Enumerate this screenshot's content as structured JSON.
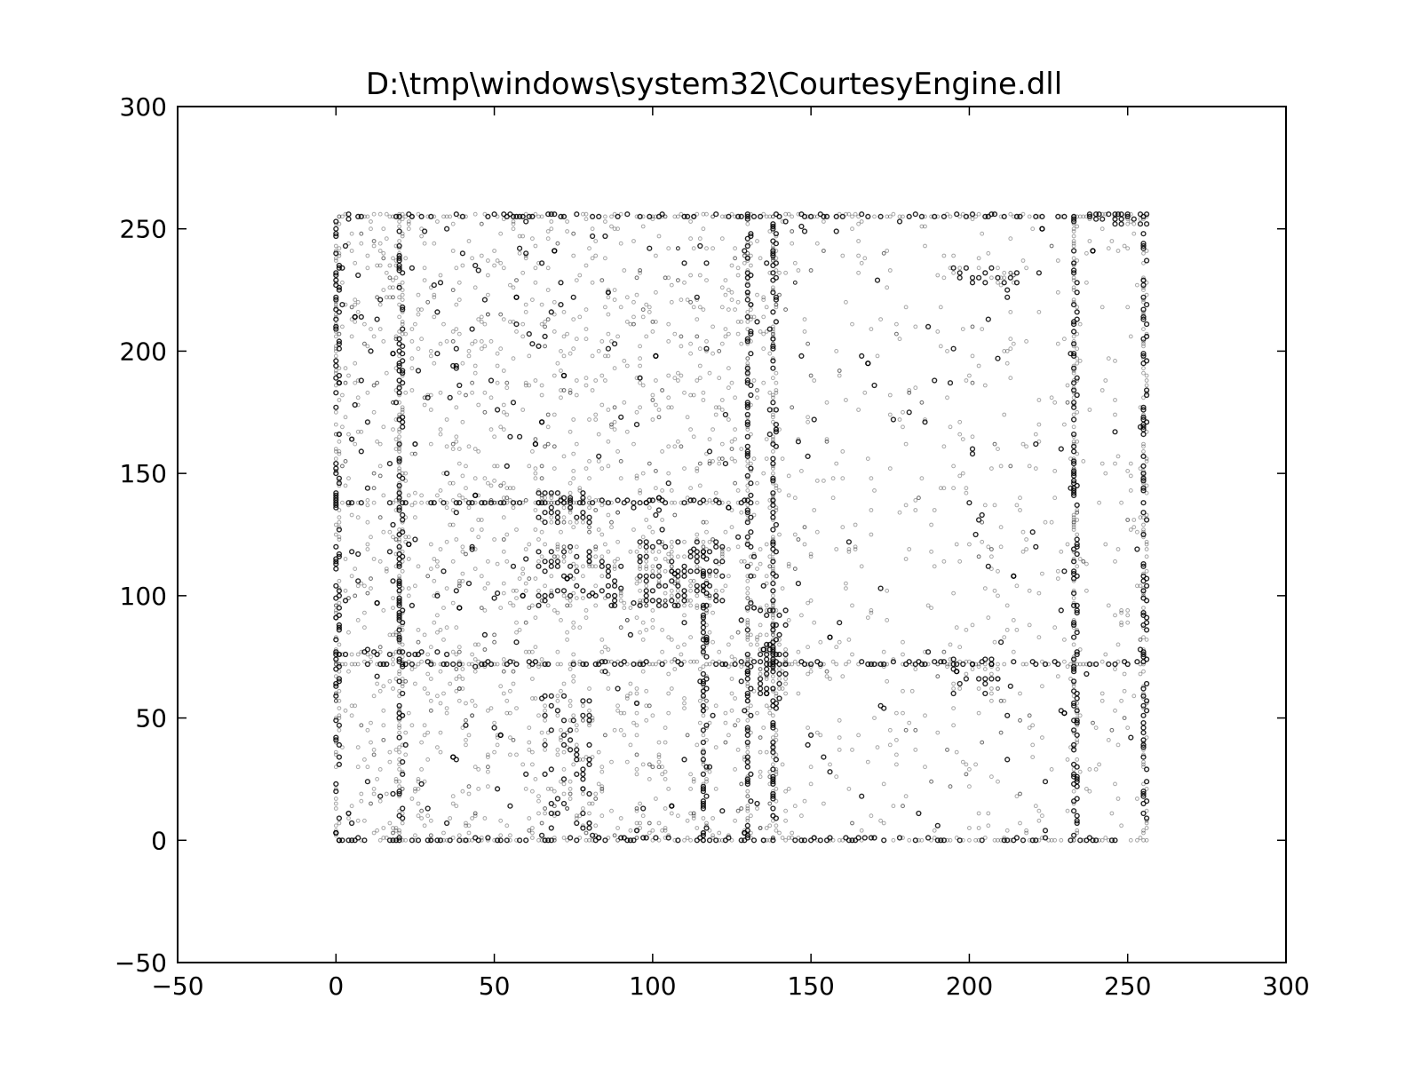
{
  "chart_data": {
    "type": "scatter",
    "title": "D:\\tmp\\windows\\system32\\CourtesyEngine.dll",
    "xlabel": "",
    "ylabel": "",
    "xlim": [
      -50,
      300
    ],
    "ylim": [
      -50,
      300
    ],
    "xticks": [
      -50,
      0,
      50,
      100,
      150,
      200,
      250,
      300
    ],
    "yticks": [
      -50,
      0,
      50,
      100,
      150,
      200,
      250,
      300
    ],
    "xtick_labels": [
      "−50",
      "0",
      "50",
      "100",
      "150",
      "200",
      "250",
      "300"
    ],
    "ytick_labels": [
      "−50",
      "0",
      "50",
      "100",
      "150",
      "200",
      "250",
      "300"
    ],
    "grid": false,
    "marker_color": "#000000",
    "marker_opacity": 0.35,
    "series": [
      {
        "lines": [
          {
            "orientation": "horizontal",
            "y": 0,
            "x_range": [
              0,
              255
            ]
          },
          {
            "orientation": "horizontal",
            "y": 72,
            "x_range": [
              0,
              255
            ]
          },
          {
            "orientation": "horizontal",
            "y": 76,
            "x_range": [
              0,
              40
            ]
          },
          {
            "orientation": "horizontal",
            "y": 138,
            "x_range": [
              0,
              130
            ]
          },
          {
            "orientation": "horizontal",
            "y": 255,
            "x_range": [
              0,
              255
            ]
          },
          {
            "orientation": "vertical",
            "x": 0,
            "y_range": [
              0,
              255
            ]
          },
          {
            "orientation": "vertical",
            "x": 20,
            "y_range": [
              0,
              255
            ]
          },
          {
            "orientation": "vertical",
            "x": 116,
            "y_range": [
              0,
              120
            ]
          },
          {
            "orientation": "vertical",
            "x": 130,
            "y_range": [
              0,
              255
            ]
          },
          {
            "orientation": "vertical",
            "x": 138,
            "y_range": [
              0,
              255
            ]
          },
          {
            "orientation": "vertical",
            "x": 233,
            "y_range": [
              0,
              255
            ]
          },
          {
            "orientation": "vertical",
            "x": 255,
            "y_range": [
              0,
              255
            ]
          }
        ],
        "clusters": [
          {
            "x_range": [
              96,
              122
            ],
            "y_range": [
              96,
              122
            ],
            "density": 0.6
          },
          {
            "x_range": [
              64,
              80
            ],
            "y_range": [
              130,
              142
            ],
            "density": 0.5
          },
          {
            "x_range": [
              64,
              90
            ],
            "y_range": [
              96,
              120
            ],
            "density": 0.35
          },
          {
            "x_range": [
              134,
              142
            ],
            "y_range": [
              60,
              95
            ],
            "density": 0.6
          },
          {
            "x_range": [
              66,
              80
            ],
            "y_range": [
              5,
              60
            ],
            "density": 0.3
          },
          {
            "x_range": [
              195,
              210
            ],
            "y_range": [
              60,
              75
            ],
            "density": 0.4
          },
          {
            "x_range": [
              195,
              215
            ],
            "y_range": [
              228,
              235
            ],
            "density": 0.5
          },
          {
            "x_range": [
              238,
              256
            ],
            "y_range": [
              252,
              256
            ],
            "density": 0.8
          }
        ],
        "scatter_extent": {
          "x_range": [
            0,
            255
          ],
          "y_range": [
            0,
            255
          ]
        }
      }
    ]
  }
}
